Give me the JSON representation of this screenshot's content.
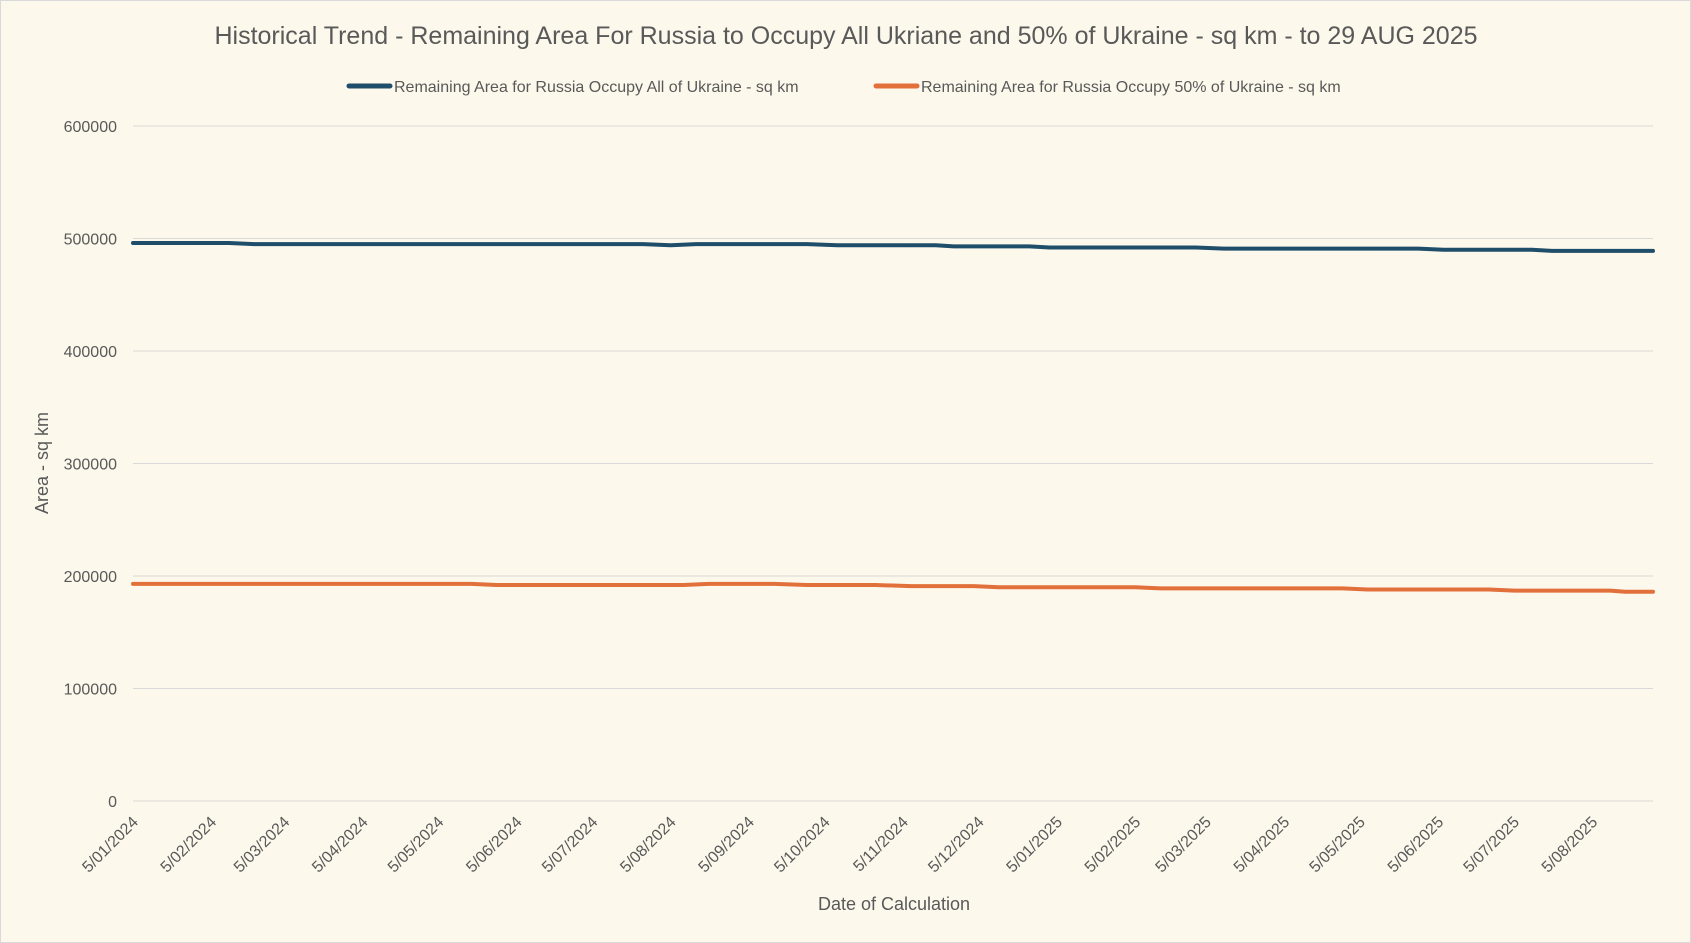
{
  "chart_data": {
    "type": "line",
    "title": "Historical Trend - Remaining Area For Russia to Occupy All Ukriane and 50% of Ukraine - sq km - to 29 AUG 2025",
    "xlabel": "Date of Calculation",
    "ylabel": "Area - sq km",
    "ylim": [
      0,
      600000
    ],
    "yticks": [
      "0",
      "100000",
      "200000",
      "300000",
      "400000",
      "500000",
      "600000"
    ],
    "xlim": [
      "2024-01-05",
      "2025-08-29"
    ],
    "xtick_dates": [
      "2024-01-05",
      "2024-02-05",
      "2024-03-05",
      "2024-04-05",
      "2024-05-05",
      "2024-06-05",
      "2024-07-05",
      "2024-08-05",
      "2024-09-05",
      "2024-10-05",
      "2024-11-05",
      "2024-12-05",
      "2025-01-05",
      "2025-02-05",
      "2025-03-05",
      "2025-04-05",
      "2025-05-05",
      "2025-06-05",
      "2025-07-05",
      "2025-08-05"
    ],
    "xtick_labels": [
      "5/01/2024",
      "5/02/2024",
      "5/03/2024",
      "5/04/2024",
      "5/05/2024",
      "5/06/2024",
      "5/07/2024",
      "5/08/2024",
      "5/09/2024",
      "5/10/2024",
      "5/11/2024",
      "5/12/2024",
      "5/01/2025",
      "5/02/2025",
      "5/03/2025",
      "5/04/2025",
      "5/05/2025",
      "5/06/2025",
      "5/07/2025",
      "5/08/2025"
    ],
    "grid": true,
    "legend": "top",
    "series": [
      {
        "name": "Remaining Area for Russia Occupy All of Ukraine - sq km",
        "color": "#1f4e6b",
        "points": [
          [
            "2024-01-05",
            496000
          ],
          [
            "2024-01-25",
            496000
          ],
          [
            "2024-02-12",
            496000
          ],
          [
            "2024-02-22",
            495000
          ],
          [
            "2024-03-10",
            495000
          ],
          [
            "2024-04-05",
            495000
          ],
          [
            "2024-05-05",
            495000
          ],
          [
            "2024-06-05",
            495000
          ],
          [
            "2024-07-05",
            495000
          ],
          [
            "2024-07-25",
            495000
          ],
          [
            "2024-08-05",
            494000
          ],
          [
            "2024-08-15",
            495000
          ],
          [
            "2024-09-05",
            495000
          ],
          [
            "2024-09-28",
            495000
          ],
          [
            "2024-10-10",
            494000
          ],
          [
            "2024-11-05",
            494000
          ],
          [
            "2024-11-18",
            494000
          ],
          [
            "2024-11-25",
            493000
          ],
          [
            "2024-12-25",
            493000
          ],
          [
            "2025-01-02",
            492000
          ],
          [
            "2025-01-25",
            492000
          ],
          [
            "2025-02-10",
            492000
          ],
          [
            "2025-03-01",
            492000
          ],
          [
            "2025-03-12",
            491000
          ],
          [
            "2025-04-05",
            491000
          ],
          [
            "2025-05-05",
            491000
          ],
          [
            "2025-05-28",
            491000
          ],
          [
            "2025-06-07",
            490000
          ],
          [
            "2025-07-05",
            490000
          ],
          [
            "2025-07-12",
            490000
          ],
          [
            "2025-07-20",
            489000
          ],
          [
            "2025-08-05",
            489000
          ],
          [
            "2025-08-29",
            489000
          ]
        ]
      },
      {
        "name": "Remaining Area for Russia Occupy 50% of Ukraine - sq km",
        "color": "#e2703a",
        "points": [
          [
            "2024-01-05",
            193000
          ],
          [
            "2024-02-05",
            193000
          ],
          [
            "2024-03-05",
            193000
          ],
          [
            "2024-04-05",
            193000
          ],
          [
            "2024-05-05",
            193000
          ],
          [
            "2024-05-18",
            193000
          ],
          [
            "2024-05-28",
            192000
          ],
          [
            "2024-06-25",
            192000
          ],
          [
            "2024-07-25",
            192000
          ],
          [
            "2024-08-10",
            192000
          ],
          [
            "2024-08-20",
            193000
          ],
          [
            "2024-09-15",
            193000
          ],
          [
            "2024-09-28",
            192000
          ],
          [
            "2024-10-25",
            192000
          ],
          [
            "2024-11-08",
            191000
          ],
          [
            "2024-12-03",
            191000
          ],
          [
            "2024-12-13",
            190000
          ],
          [
            "2025-01-15",
            190000
          ],
          [
            "2025-02-05",
            190000
          ],
          [
            "2025-02-15",
            189000
          ],
          [
            "2025-03-15",
            189000
          ],
          [
            "2025-04-05",
            189000
          ],
          [
            "2025-04-28",
            189000
          ],
          [
            "2025-05-08",
            188000
          ],
          [
            "2025-06-05",
            188000
          ],
          [
            "2025-06-25",
            188000
          ],
          [
            "2025-07-05",
            187000
          ],
          [
            "2025-08-05",
            187000
          ],
          [
            "2025-08-12",
            187000
          ],
          [
            "2025-08-18",
            186000
          ],
          [
            "2025-08-29",
            186000
          ]
        ]
      }
    ]
  }
}
